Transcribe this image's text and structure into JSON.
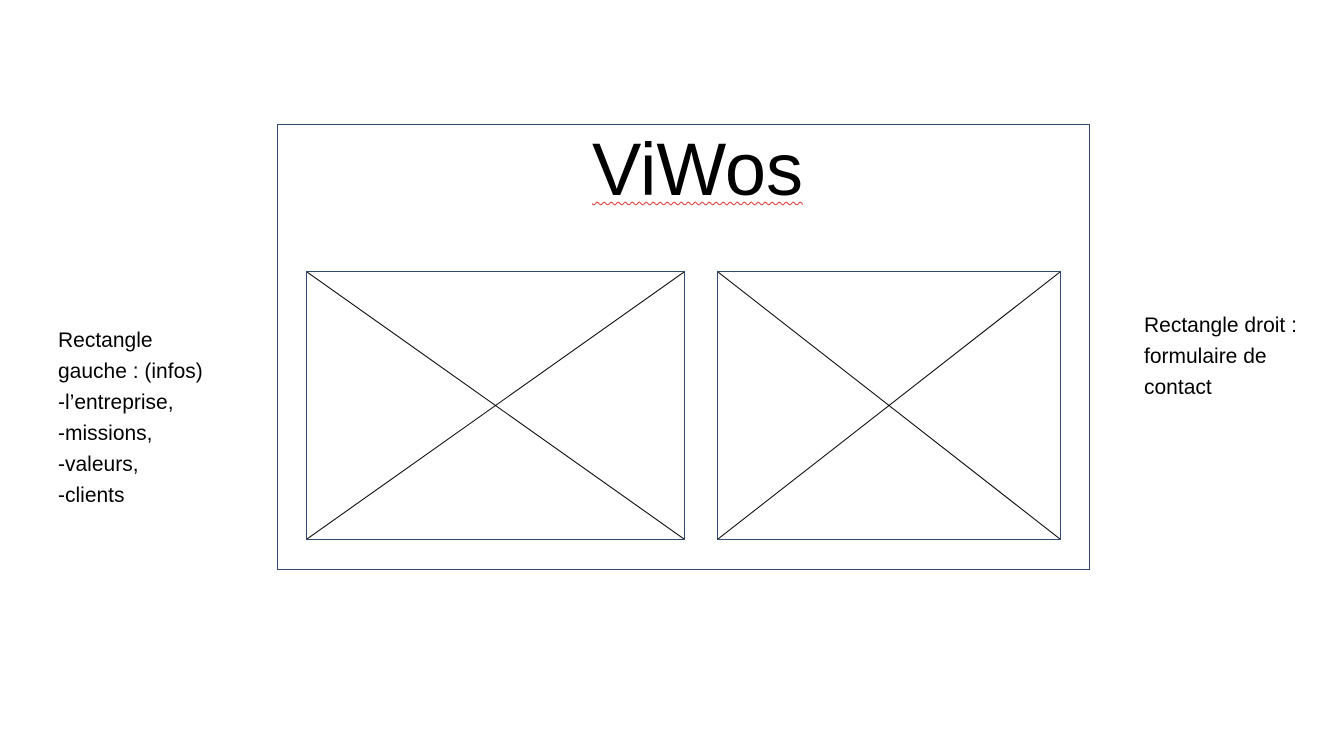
{
  "title": "ViWos",
  "left_note": {
    "lines": [
      "Rectangle",
      "gauche : (infos)",
      "-l’entreprise,",
      "-missions,",
      "-valeurs,",
      "-clients"
    ]
  },
  "right_note": {
    "lines": [
      "Rectangle droit :",
      "formulaire de",
      "contact"
    ]
  },
  "colors": {
    "frame_border": "#2f4a6e",
    "spellcheck_underline": "#e0312b"
  }
}
